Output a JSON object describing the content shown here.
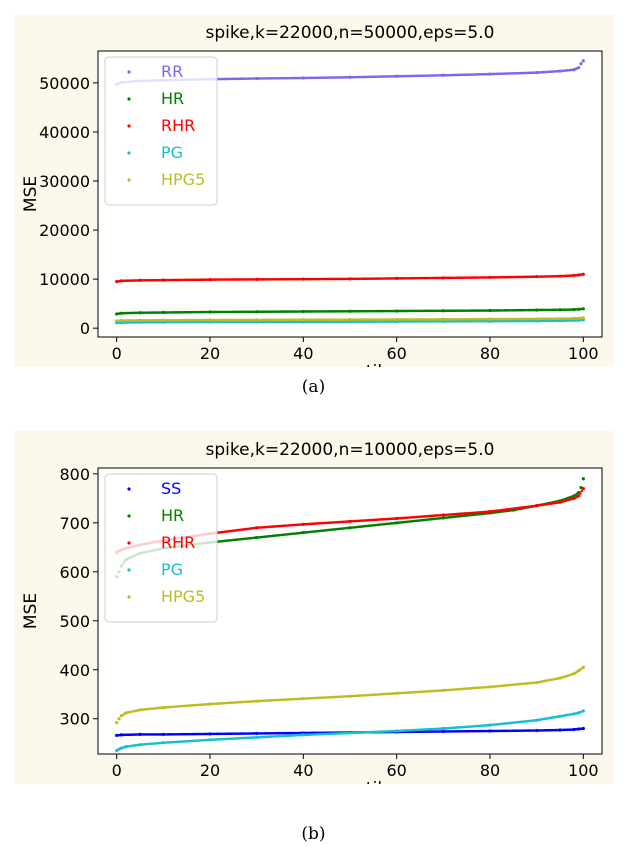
{
  "chart_data": [
    {
      "type": "scatter",
      "title": "spike,k=22000,n=50000,eps=5.0",
      "xlabel": "percentile",
      "ylabel": "MSE",
      "xlim": [
        -4,
        104
      ],
      "ylim": [
        -1800,
        56500
      ],
      "xticks": [
        "0",
        "20",
        "40",
        "60",
        "80",
        "100"
      ],
      "yticks": [
        "0",
        "10000",
        "20000",
        "30000",
        "40000",
        "50000"
      ],
      "legend_position": "upper-left",
      "grid": false,
      "series": [
        {
          "name": "RR",
          "color": "#7b68ee",
          "x": [
            0,
            1,
            5,
            10,
            20,
            30,
            40,
            50,
            60,
            70,
            80,
            90,
            95,
            98,
            99,
            99.5,
            100
          ],
          "values": [
            49700,
            50100,
            50400,
            50550,
            50750,
            50900,
            51000,
            51150,
            51350,
            51550,
            51800,
            52100,
            52400,
            52700,
            53100,
            53900,
            54500
          ]
        },
        {
          "name": "HR",
          "color": "#008000",
          "x": [
            0,
            1,
            5,
            10,
            20,
            30,
            40,
            50,
            60,
            70,
            80,
            90,
            95,
            98,
            99,
            100
          ],
          "values": [
            2900,
            3050,
            3150,
            3200,
            3300,
            3350,
            3400,
            3450,
            3500,
            3550,
            3600,
            3700,
            3750,
            3800,
            3850,
            3950
          ]
        },
        {
          "name": "RHR",
          "color": "#ff0000",
          "x": [
            0,
            1,
            5,
            10,
            20,
            30,
            40,
            50,
            60,
            70,
            80,
            90,
            95,
            98,
            99,
            100
          ],
          "values": [
            9500,
            9650,
            9750,
            9800,
            9900,
            9950,
            10000,
            10050,
            10150,
            10250,
            10350,
            10500,
            10600,
            10750,
            10850,
            11000
          ]
        },
        {
          "name": "PG",
          "color": "#17becf",
          "x": [
            0,
            1,
            5,
            10,
            20,
            30,
            40,
            50,
            60,
            70,
            80,
            90,
            95,
            98,
            99,
            100
          ],
          "values": [
            1100,
            1150,
            1200,
            1230,
            1260,
            1290,
            1310,
            1330,
            1360,
            1390,
            1420,
            1470,
            1520,
            1580,
            1620,
            1700
          ]
        },
        {
          "name": "HPG5",
          "color": "#bcbd22",
          "x": [
            0,
            1,
            5,
            10,
            20,
            30,
            40,
            50,
            60,
            70,
            80,
            90,
            95,
            98,
            99,
            100
          ],
          "values": [
            1500,
            1560,
            1600,
            1630,
            1660,
            1690,
            1710,
            1740,
            1770,
            1800,
            1840,
            1890,
            1930,
            1980,
            2020,
            2100
          ]
        }
      ]
    },
    {
      "type": "scatter",
      "title": "spike,k=22000,n=10000,eps=5.0",
      "xlabel": "percentile",
      "ylabel": "MSE",
      "xlim": [
        -4,
        104
      ],
      "ylim": [
        228,
        812
      ],
      "xticks": [
        "0",
        "20",
        "40",
        "60",
        "80",
        "100"
      ],
      "yticks": [
        "300",
        "400",
        "500",
        "600",
        "700",
        "800"
      ],
      "legend_position": "upper-left",
      "grid": false,
      "series": [
        {
          "name": "SS",
          "color": "#0000ff",
          "x": [
            0,
            1,
            5,
            10,
            20,
            30,
            40,
            50,
            60,
            70,
            80,
            90,
            95,
            98,
            99,
            100
          ],
          "values": [
            266,
            267,
            268,
            268,
            269,
            270,
            271,
            272,
            273,
            274,
            275,
            276,
            277,
            278,
            279,
            280
          ]
        },
        {
          "name": "HR",
          "color": "#008000",
          "x": [
            0,
            0.5,
            1,
            2,
            5,
            10,
            20,
            30,
            40,
            50,
            60,
            70,
            80,
            85,
            90,
            95,
            98,
            99,
            99.5,
            100
          ],
          "values": [
            590,
            600,
            612,
            625,
            638,
            648,
            660,
            670,
            680,
            690,
            700,
            710,
            720,
            726,
            735,
            745,
            755,
            762,
            772,
            790
          ]
        },
        {
          "name": "RHR",
          "color": "#ff0000",
          "x": [
            0,
            1,
            2,
            5,
            10,
            20,
            30,
            40,
            50,
            60,
            70,
            80,
            90,
            95,
            98,
            99,
            100
          ],
          "values": [
            640,
            645,
            648,
            655,
            664,
            678,
            690,
            697,
            703,
            709,
            716,
            723,
            735,
            742,
            750,
            755,
            770
          ]
        },
        {
          "name": "PG",
          "color": "#17becf",
          "x": [
            0,
            0.5,
            1,
            2,
            5,
            10,
            20,
            30,
            40,
            50,
            60,
            70,
            80,
            90,
            95,
            98,
            99,
            100
          ],
          "values": [
            235,
            238,
            240,
            243,
            247,
            251,
            257,
            262,
            267,
            271,
            275,
            280,
            287,
            297,
            305,
            310,
            312,
            316
          ]
        },
        {
          "name": "HPG5",
          "color": "#bcbd22",
          "x": [
            0,
            0.5,
            1,
            2,
            5,
            10,
            20,
            30,
            40,
            50,
            60,
            70,
            80,
            90,
            95,
            98,
            99,
            100
          ],
          "values": [
            292,
            300,
            306,
            312,
            318,
            323,
            330,
            336,
            341,
            346,
            352,
            358,
            365,
            374,
            383,
            392,
            398,
            405
          ]
        }
      ]
    }
  ],
  "captions": [
    "(a)",
    "(b)"
  ]
}
